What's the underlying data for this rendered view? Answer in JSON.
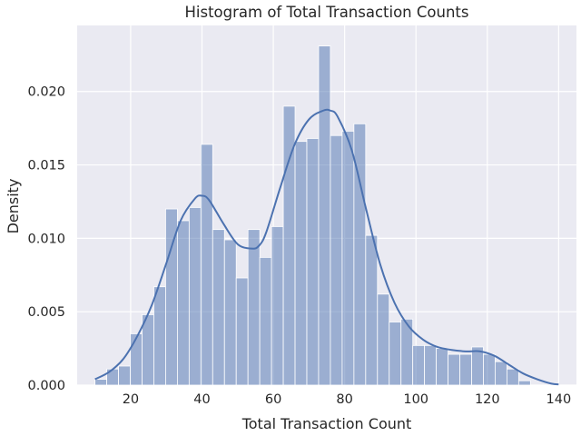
{
  "chart_data": {
    "type": "bar",
    "title": "Histogram of Total Transaction Counts",
    "xlabel": "Total Transaction Count",
    "ylabel": "Density",
    "xlim": [
      5,
      145
    ],
    "ylim": [
      0,
      0.0245
    ],
    "x_ticks": [
      20,
      40,
      60,
      80,
      100,
      120,
      140
    ],
    "x_tick_labels": [
      "20",
      "40",
      "60",
      "80",
      "100",
      "120",
      "140"
    ],
    "y_ticks": [
      0,
      0.005,
      0.01,
      0.015,
      0.02
    ],
    "y_tick_labels": [
      "0.000",
      "0.005",
      "0.010",
      "0.015",
      "0.020"
    ],
    "grid": true,
    "bar_color": "#4c72b0",
    "background_color": "#eaeaf2",
    "bin_edges": [
      10,
      13.3,
      16.6,
      19.9,
      23.2,
      26.5,
      29.8,
      33.1,
      36.4,
      39.7,
      43.0,
      46.3,
      49.6,
      52.9,
      56.2,
      59.5,
      62.8,
      66.1,
      69.4,
      72.7,
      76.0,
      79.3,
      82.6,
      85.9,
      89.2,
      92.5,
      95.8,
      99.1,
      102.4,
      105.7,
      109.0,
      112.3,
      115.6,
      118.9,
      122.2,
      125.5,
      128.8,
      132.1,
      135.4,
      138.7
    ],
    "values": [
      0.0004,
      0.0011,
      0.0013,
      0.0035,
      0.0048,
      0.0067,
      0.012,
      0.0112,
      0.0121,
      0.0164,
      0.0106,
      0.0099,
      0.0073,
      0.0106,
      0.0087,
      0.0108,
      0.019,
      0.0166,
      0.0168,
      0.0231,
      0.017,
      0.0173,
      0.0178,
      0.0102,
      0.0062,
      0.0043,
      0.0045,
      0.0027,
      0.0027,
      0.0025,
      0.0021,
      0.0021,
      0.0026,
      0.0021,
      0.0016,
      0.0011,
      0.0003,
      0,
      0
    ],
    "kde": {
      "x": [
        10,
        14,
        18,
        22,
        26,
        30,
        34,
        38,
        40,
        42,
        46,
        50,
        54,
        56,
        58,
        62,
        66,
        70,
        74,
        76,
        78,
        82,
        86,
        90,
        94,
        98,
        102,
        106,
        110,
        114,
        118,
        122,
        126,
        130,
        134,
        138,
        140
      ],
      "y": [
        0.0004,
        0.0009,
        0.0018,
        0.0034,
        0.0055,
        0.0083,
        0.0112,
        0.0127,
        0.0129,
        0.0126,
        0.011,
        0.0096,
        0.0093,
        0.0095,
        0.0104,
        0.0135,
        0.0164,
        0.0181,
        0.0187,
        0.0187,
        0.0183,
        0.016,
        0.012,
        0.0082,
        0.0056,
        0.004,
        0.0031,
        0.0026,
        0.0024,
        0.0023,
        0.0023,
        0.002,
        0.0014,
        0.0008,
        0.0004,
        0.0001,
        5e-05
      ]
    }
  }
}
